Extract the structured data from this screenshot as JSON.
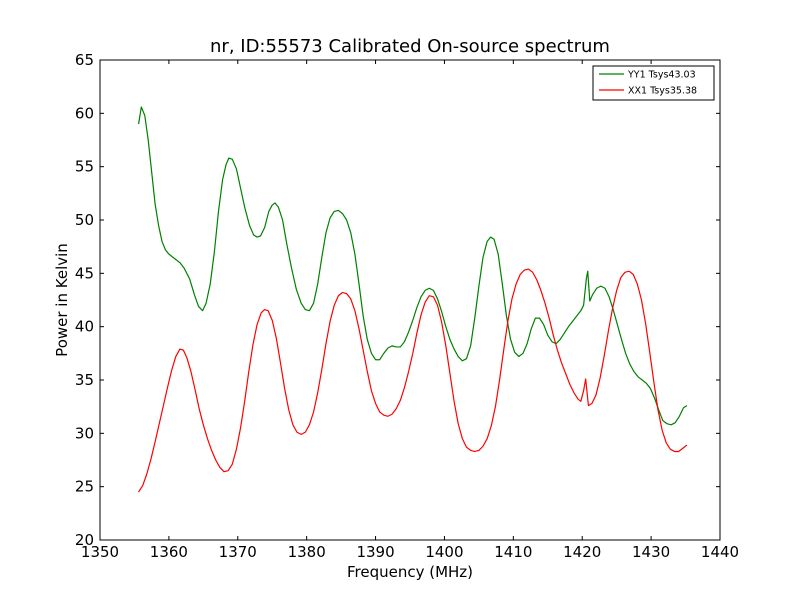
{
  "chart_data": {
    "type": "line",
    "title": "nr, ID:55573 Calibrated On-source spectrum",
    "xlabel": "Frequency (MHz)",
    "ylabel": "Power in Kelvin",
    "xlim": [
      1350,
      1440
    ],
    "ylim": [
      20,
      65
    ],
    "xticks": [
      1350,
      1360,
      1370,
      1380,
      1390,
      1400,
      1410,
      1420,
      1430,
      1440
    ],
    "yticks": [
      20,
      25,
      30,
      35,
      40,
      45,
      50,
      55,
      60,
      65
    ],
    "grid": false,
    "legend_position": "top-right",
    "series": [
      {
        "name": "YY1 Tsys43.03",
        "color": "#008000",
        "points": [
          [
            1355.6,
            59.0
          ],
          [
            1356.0,
            60.6
          ],
          [
            1356.5,
            59.8
          ],
          [
            1357.0,
            57.5
          ],
          [
            1357.5,
            54.5
          ],
          [
            1358.0,
            51.5
          ],
          [
            1358.5,
            49.5
          ],
          [
            1359.0,
            48.0
          ],
          [
            1359.5,
            47.2
          ],
          [
            1360.0,
            46.8
          ],
          [
            1361.0,
            46.3
          ],
          [
            1361.6,
            46.0
          ],
          [
            1362.2,
            45.5
          ],
          [
            1363.0,
            44.5
          ],
          [
            1363.7,
            43.0
          ],
          [
            1364.3,
            41.9
          ],
          [
            1364.9,
            41.5
          ],
          [
            1365.4,
            42.2
          ],
          [
            1366.0,
            44.0
          ],
          [
            1366.6,
            47.0
          ],
          [
            1367.2,
            50.8
          ],
          [
            1367.8,
            53.8
          ],
          [
            1368.3,
            55.2
          ],
          [
            1368.7,
            55.8
          ],
          [
            1369.2,
            55.7
          ],
          [
            1369.8,
            54.8
          ],
          [
            1370.4,
            53.0
          ],
          [
            1371.0,
            51.2
          ],
          [
            1371.7,
            49.5
          ],
          [
            1372.3,
            48.6
          ],
          [
            1372.8,
            48.4
          ],
          [
            1373.3,
            48.5
          ],
          [
            1373.9,
            49.3
          ],
          [
            1374.5,
            50.8
          ],
          [
            1375.0,
            51.4
          ],
          [
            1375.4,
            51.6
          ],
          [
            1375.9,
            51.2
          ],
          [
            1376.5,
            50.0
          ],
          [
            1377.1,
            47.8
          ],
          [
            1377.8,
            45.5
          ],
          [
            1378.5,
            43.5
          ],
          [
            1379.2,
            42.2
          ],
          [
            1379.8,
            41.6
          ],
          [
            1380.4,
            41.5
          ],
          [
            1381.0,
            42.2
          ],
          [
            1381.6,
            44.0
          ],
          [
            1382.2,
            46.5
          ],
          [
            1382.8,
            48.8
          ],
          [
            1383.4,
            50.2
          ],
          [
            1384.0,
            50.8
          ],
          [
            1384.6,
            50.9
          ],
          [
            1385.2,
            50.6
          ],
          [
            1385.8,
            50.0
          ],
          [
            1386.4,
            48.8
          ],
          [
            1387.0,
            46.8
          ],
          [
            1387.6,
            44.0
          ],
          [
            1388.2,
            41.0
          ],
          [
            1388.8,
            38.8
          ],
          [
            1389.4,
            37.5
          ],
          [
            1390.0,
            36.9
          ],
          [
            1390.6,
            36.9
          ],
          [
            1391.2,
            37.5
          ],
          [
            1391.8,
            38.0
          ],
          [
            1392.4,
            38.2
          ],
          [
            1393.0,
            38.1
          ],
          [
            1393.6,
            38.1
          ],
          [
            1394.2,
            38.6
          ],
          [
            1394.8,
            39.5
          ],
          [
            1395.4,
            40.6
          ],
          [
            1396.0,
            41.8
          ],
          [
            1396.6,
            42.8
          ],
          [
            1397.2,
            43.4
          ],
          [
            1397.8,
            43.6
          ],
          [
            1398.4,
            43.4
          ],
          [
            1399.0,
            42.6
          ],
          [
            1399.6,
            41.4
          ],
          [
            1400.2,
            40.0
          ],
          [
            1400.8,
            38.8
          ],
          [
            1401.4,
            37.9
          ],
          [
            1402.0,
            37.2
          ],
          [
            1402.6,
            36.8
          ],
          [
            1403.2,
            37.0
          ],
          [
            1403.8,
            38.2
          ],
          [
            1404.4,
            40.8
          ],
          [
            1405.0,
            43.8
          ],
          [
            1405.6,
            46.5
          ],
          [
            1406.2,
            48.0
          ],
          [
            1406.7,
            48.4
          ],
          [
            1407.2,
            48.2
          ],
          [
            1407.8,
            46.8
          ],
          [
            1408.4,
            44.0
          ],
          [
            1409.0,
            41.0
          ],
          [
            1409.6,
            38.8
          ],
          [
            1410.2,
            37.6
          ],
          [
            1410.8,
            37.2
          ],
          [
            1411.4,
            37.5
          ],
          [
            1412.0,
            38.4
          ],
          [
            1412.6,
            39.8
          ],
          [
            1413.2,
            40.8
          ],
          [
            1413.8,
            40.8
          ],
          [
            1414.4,
            40.2
          ],
          [
            1415.0,
            39.2
          ],
          [
            1415.6,
            38.6
          ],
          [
            1416.2,
            38.4
          ],
          [
            1416.8,
            38.8
          ],
          [
            1417.4,
            39.4
          ],
          [
            1418.0,
            40.0
          ],
          [
            1418.6,
            40.5
          ],
          [
            1419.2,
            41.0
          ],
          [
            1419.8,
            41.5
          ],
          [
            1420.2,
            42.0
          ],
          [
            1420.6,
            44.5
          ],
          [
            1420.8,
            45.2
          ],
          [
            1421.1,
            42.4
          ],
          [
            1421.5,
            43.0
          ],
          [
            1422.1,
            43.6
          ],
          [
            1422.7,
            43.8
          ],
          [
            1423.3,
            43.6
          ],
          [
            1423.9,
            42.8
          ],
          [
            1424.5,
            41.6
          ],
          [
            1425.1,
            40.2
          ],
          [
            1425.7,
            38.8
          ],
          [
            1426.3,
            37.5
          ],
          [
            1426.9,
            36.5
          ],
          [
            1427.5,
            35.8
          ],
          [
            1428.1,
            35.3
          ],
          [
            1428.7,
            35.0
          ],
          [
            1429.3,
            34.7
          ],
          [
            1429.9,
            34.2
          ],
          [
            1430.5,
            33.3
          ],
          [
            1431.1,
            32.2
          ],
          [
            1431.7,
            31.2
          ],
          [
            1432.3,
            30.9
          ],
          [
            1432.9,
            30.8
          ],
          [
            1433.5,
            31.0
          ],
          [
            1434.1,
            31.6
          ],
          [
            1434.7,
            32.4
          ],
          [
            1435.2,
            32.6
          ]
        ]
      },
      {
        "name": "XX1 Tsys35.38",
        "color": "#ff0000",
        "points": [
          [
            1355.6,
            24.5
          ],
          [
            1356.2,
            25.1
          ],
          [
            1356.8,
            26.2
          ],
          [
            1357.4,
            27.6
          ],
          [
            1358.0,
            29.2
          ],
          [
            1358.6,
            30.9
          ],
          [
            1359.2,
            32.6
          ],
          [
            1359.8,
            34.3
          ],
          [
            1360.4,
            35.9
          ],
          [
            1361.0,
            37.2
          ],
          [
            1361.6,
            37.9
          ],
          [
            1362.1,
            37.8
          ],
          [
            1362.6,
            37.1
          ],
          [
            1363.2,
            35.8
          ],
          [
            1363.8,
            34.1
          ],
          [
            1364.4,
            32.3
          ],
          [
            1365.0,
            30.8
          ],
          [
            1365.6,
            29.5
          ],
          [
            1366.2,
            28.4
          ],
          [
            1366.8,
            27.5
          ],
          [
            1367.4,
            26.8
          ],
          [
            1368.0,
            26.4
          ],
          [
            1368.6,
            26.5
          ],
          [
            1369.2,
            27.1
          ],
          [
            1369.8,
            28.5
          ],
          [
            1370.4,
            30.5
          ],
          [
            1371.0,
            33.0
          ],
          [
            1371.6,
            35.8
          ],
          [
            1372.2,
            38.3
          ],
          [
            1372.8,
            40.2
          ],
          [
            1373.4,
            41.3
          ],
          [
            1373.9,
            41.6
          ],
          [
            1374.4,
            41.5
          ],
          [
            1375.0,
            40.6
          ],
          [
            1375.6,
            38.9
          ],
          [
            1376.2,
            36.6
          ],
          [
            1376.8,
            34.2
          ],
          [
            1377.4,
            32.2
          ],
          [
            1378.0,
            30.8
          ],
          [
            1378.6,
            30.1
          ],
          [
            1379.2,
            29.9
          ],
          [
            1379.8,
            30.1
          ],
          [
            1380.4,
            30.8
          ],
          [
            1381.0,
            32.0
          ],
          [
            1381.6,
            33.8
          ],
          [
            1382.2,
            36.0
          ],
          [
            1382.8,
            38.4
          ],
          [
            1383.4,
            40.5
          ],
          [
            1384.0,
            42.0
          ],
          [
            1384.6,
            42.9
          ],
          [
            1385.2,
            43.2
          ],
          [
            1385.8,
            43.1
          ],
          [
            1386.4,
            42.6
          ],
          [
            1387.0,
            41.5
          ],
          [
            1387.6,
            39.8
          ],
          [
            1388.2,
            37.8
          ],
          [
            1388.8,
            35.8
          ],
          [
            1389.4,
            34.0
          ],
          [
            1390.0,
            32.8
          ],
          [
            1390.6,
            32.0
          ],
          [
            1391.2,
            31.7
          ],
          [
            1391.8,
            31.6
          ],
          [
            1392.4,
            31.8
          ],
          [
            1393.0,
            32.3
          ],
          [
            1393.6,
            33.1
          ],
          [
            1394.2,
            34.3
          ],
          [
            1394.8,
            35.8
          ],
          [
            1395.4,
            37.5
          ],
          [
            1396.0,
            39.4
          ],
          [
            1396.6,
            41.1
          ],
          [
            1397.2,
            42.3
          ],
          [
            1397.8,
            42.9
          ],
          [
            1398.4,
            42.8
          ],
          [
            1399.0,
            42.0
          ],
          [
            1399.6,
            40.4
          ],
          [
            1400.2,
            38.2
          ],
          [
            1400.8,
            35.6
          ],
          [
            1401.4,
            33.0
          ],
          [
            1402.0,
            30.9
          ],
          [
            1402.6,
            29.5
          ],
          [
            1403.2,
            28.7
          ],
          [
            1403.8,
            28.4
          ],
          [
            1404.4,
            28.3
          ],
          [
            1405.0,
            28.4
          ],
          [
            1405.6,
            28.8
          ],
          [
            1406.2,
            29.5
          ],
          [
            1406.8,
            30.7
          ],
          [
            1407.4,
            32.5
          ],
          [
            1408.0,
            35.0
          ],
          [
            1408.6,
            37.8
          ],
          [
            1409.2,
            40.5
          ],
          [
            1409.8,
            42.6
          ],
          [
            1410.4,
            44.0
          ],
          [
            1411.0,
            44.9
          ],
          [
            1411.6,
            45.3
          ],
          [
            1412.2,
            45.4
          ],
          [
            1412.8,
            45.1
          ],
          [
            1413.4,
            44.4
          ],
          [
            1414.0,
            43.4
          ],
          [
            1414.6,
            42.2
          ],
          [
            1415.2,
            40.8
          ],
          [
            1415.8,
            39.2
          ],
          [
            1416.4,
            37.8
          ],
          [
            1417.0,
            36.6
          ],
          [
            1417.6,
            35.6
          ],
          [
            1418.2,
            34.6
          ],
          [
            1418.8,
            33.8
          ],
          [
            1419.4,
            33.2
          ],
          [
            1419.8,
            33.0
          ],
          [
            1420.2,
            34.0
          ],
          [
            1420.5,
            35.1
          ],
          [
            1420.9,
            32.6
          ],
          [
            1421.4,
            32.8
          ],
          [
            1422.0,
            33.6
          ],
          [
            1422.6,
            35.2
          ],
          [
            1423.2,
            37.3
          ],
          [
            1423.8,
            39.6
          ],
          [
            1424.4,
            41.7
          ],
          [
            1425.0,
            43.4
          ],
          [
            1425.6,
            44.6
          ],
          [
            1426.2,
            45.1
          ],
          [
            1426.8,
            45.2
          ],
          [
            1427.4,
            44.9
          ],
          [
            1428.0,
            44.0
          ],
          [
            1428.6,
            42.5
          ],
          [
            1429.2,
            40.3
          ],
          [
            1429.8,
            37.6
          ],
          [
            1430.4,
            34.8
          ],
          [
            1431.0,
            32.2
          ],
          [
            1431.6,
            30.3
          ],
          [
            1432.2,
            29.1
          ],
          [
            1432.8,
            28.5
          ],
          [
            1433.4,
            28.3
          ],
          [
            1434.0,
            28.3
          ],
          [
            1434.6,
            28.6
          ],
          [
            1435.2,
            28.9
          ]
        ]
      }
    ]
  }
}
